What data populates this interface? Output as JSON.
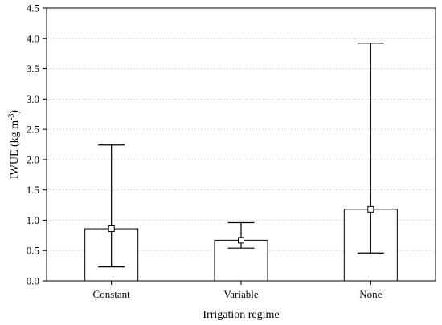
{
  "chart_data": {
    "type": "bar",
    "xlabel": "Irrigation regime",
    "ylabel_main": "IWUE (kg m",
    "ylabel_sup": "-3",
    "ylabel_end": ")",
    "ylim": [
      0,
      4.5
    ],
    "yticks": [
      0.0,
      0.5,
      1.0,
      1.5,
      2.0,
      2.5,
      3.0,
      3.5,
      4.0,
      4.5
    ],
    "ytick_labels": [
      "0.0",
      "0.5",
      "1.0",
      "1.5",
      "2.0",
      "2.5",
      "3.0",
      "3.5",
      "4.0",
      "4.5"
    ],
    "grid": true,
    "categories": [
      "Constant",
      "Variable",
      "None"
    ],
    "values": [
      0.86,
      0.67,
      1.18
    ],
    "whisker_low": [
      0.23,
      0.54,
      0.46
    ],
    "whisker_high": [
      2.24,
      0.96,
      3.92
    ]
  }
}
